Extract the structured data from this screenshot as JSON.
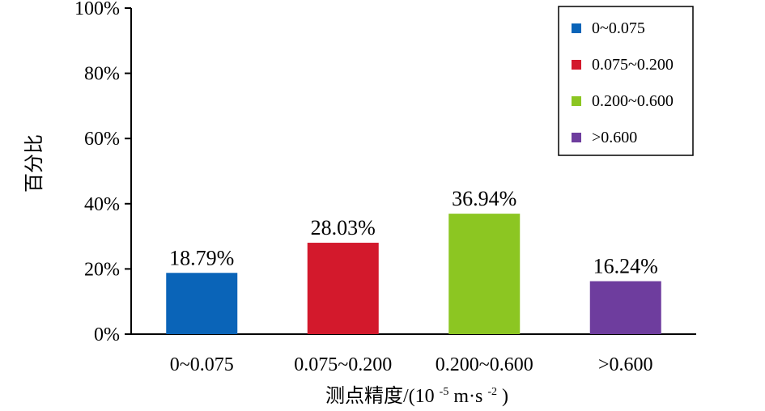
{
  "chart_data": {
    "type": "bar",
    "categories": [
      "0~0.075",
      "0.075~0.200",
      "0.200~0.600",
      ">0.600"
    ],
    "values": [
      18.79,
      28.03,
      36.94,
      16.24
    ],
    "value_labels": [
      "18.79%",
      "28.03%",
      "36.94%",
      "16.24%"
    ],
    "colors": [
      "#0a64b8",
      "#d3192c",
      "#8cc622",
      "#6e3d9e"
    ],
    "ylim": [
      0,
      100
    ],
    "yticks": [
      0,
      20,
      40,
      60,
      80,
      100
    ],
    "ytick_labels": [
      "0%",
      "20%",
      "40%",
      "60%",
      "80%",
      "100%"
    ],
    "ylabel": "百分比",
    "xlabel_main": "测点精度/(10",
    "xlabel_exp1": "-5",
    "xlabel_mid": "m·s",
    "xlabel_exp2": "-2",
    "xlabel_end": ")",
    "legend": {
      "position": "top-right",
      "entries": [
        "0~0.075",
        "0.075~0.200",
        "0.200~0.600",
        ">0.600"
      ]
    },
    "grid": false
  }
}
